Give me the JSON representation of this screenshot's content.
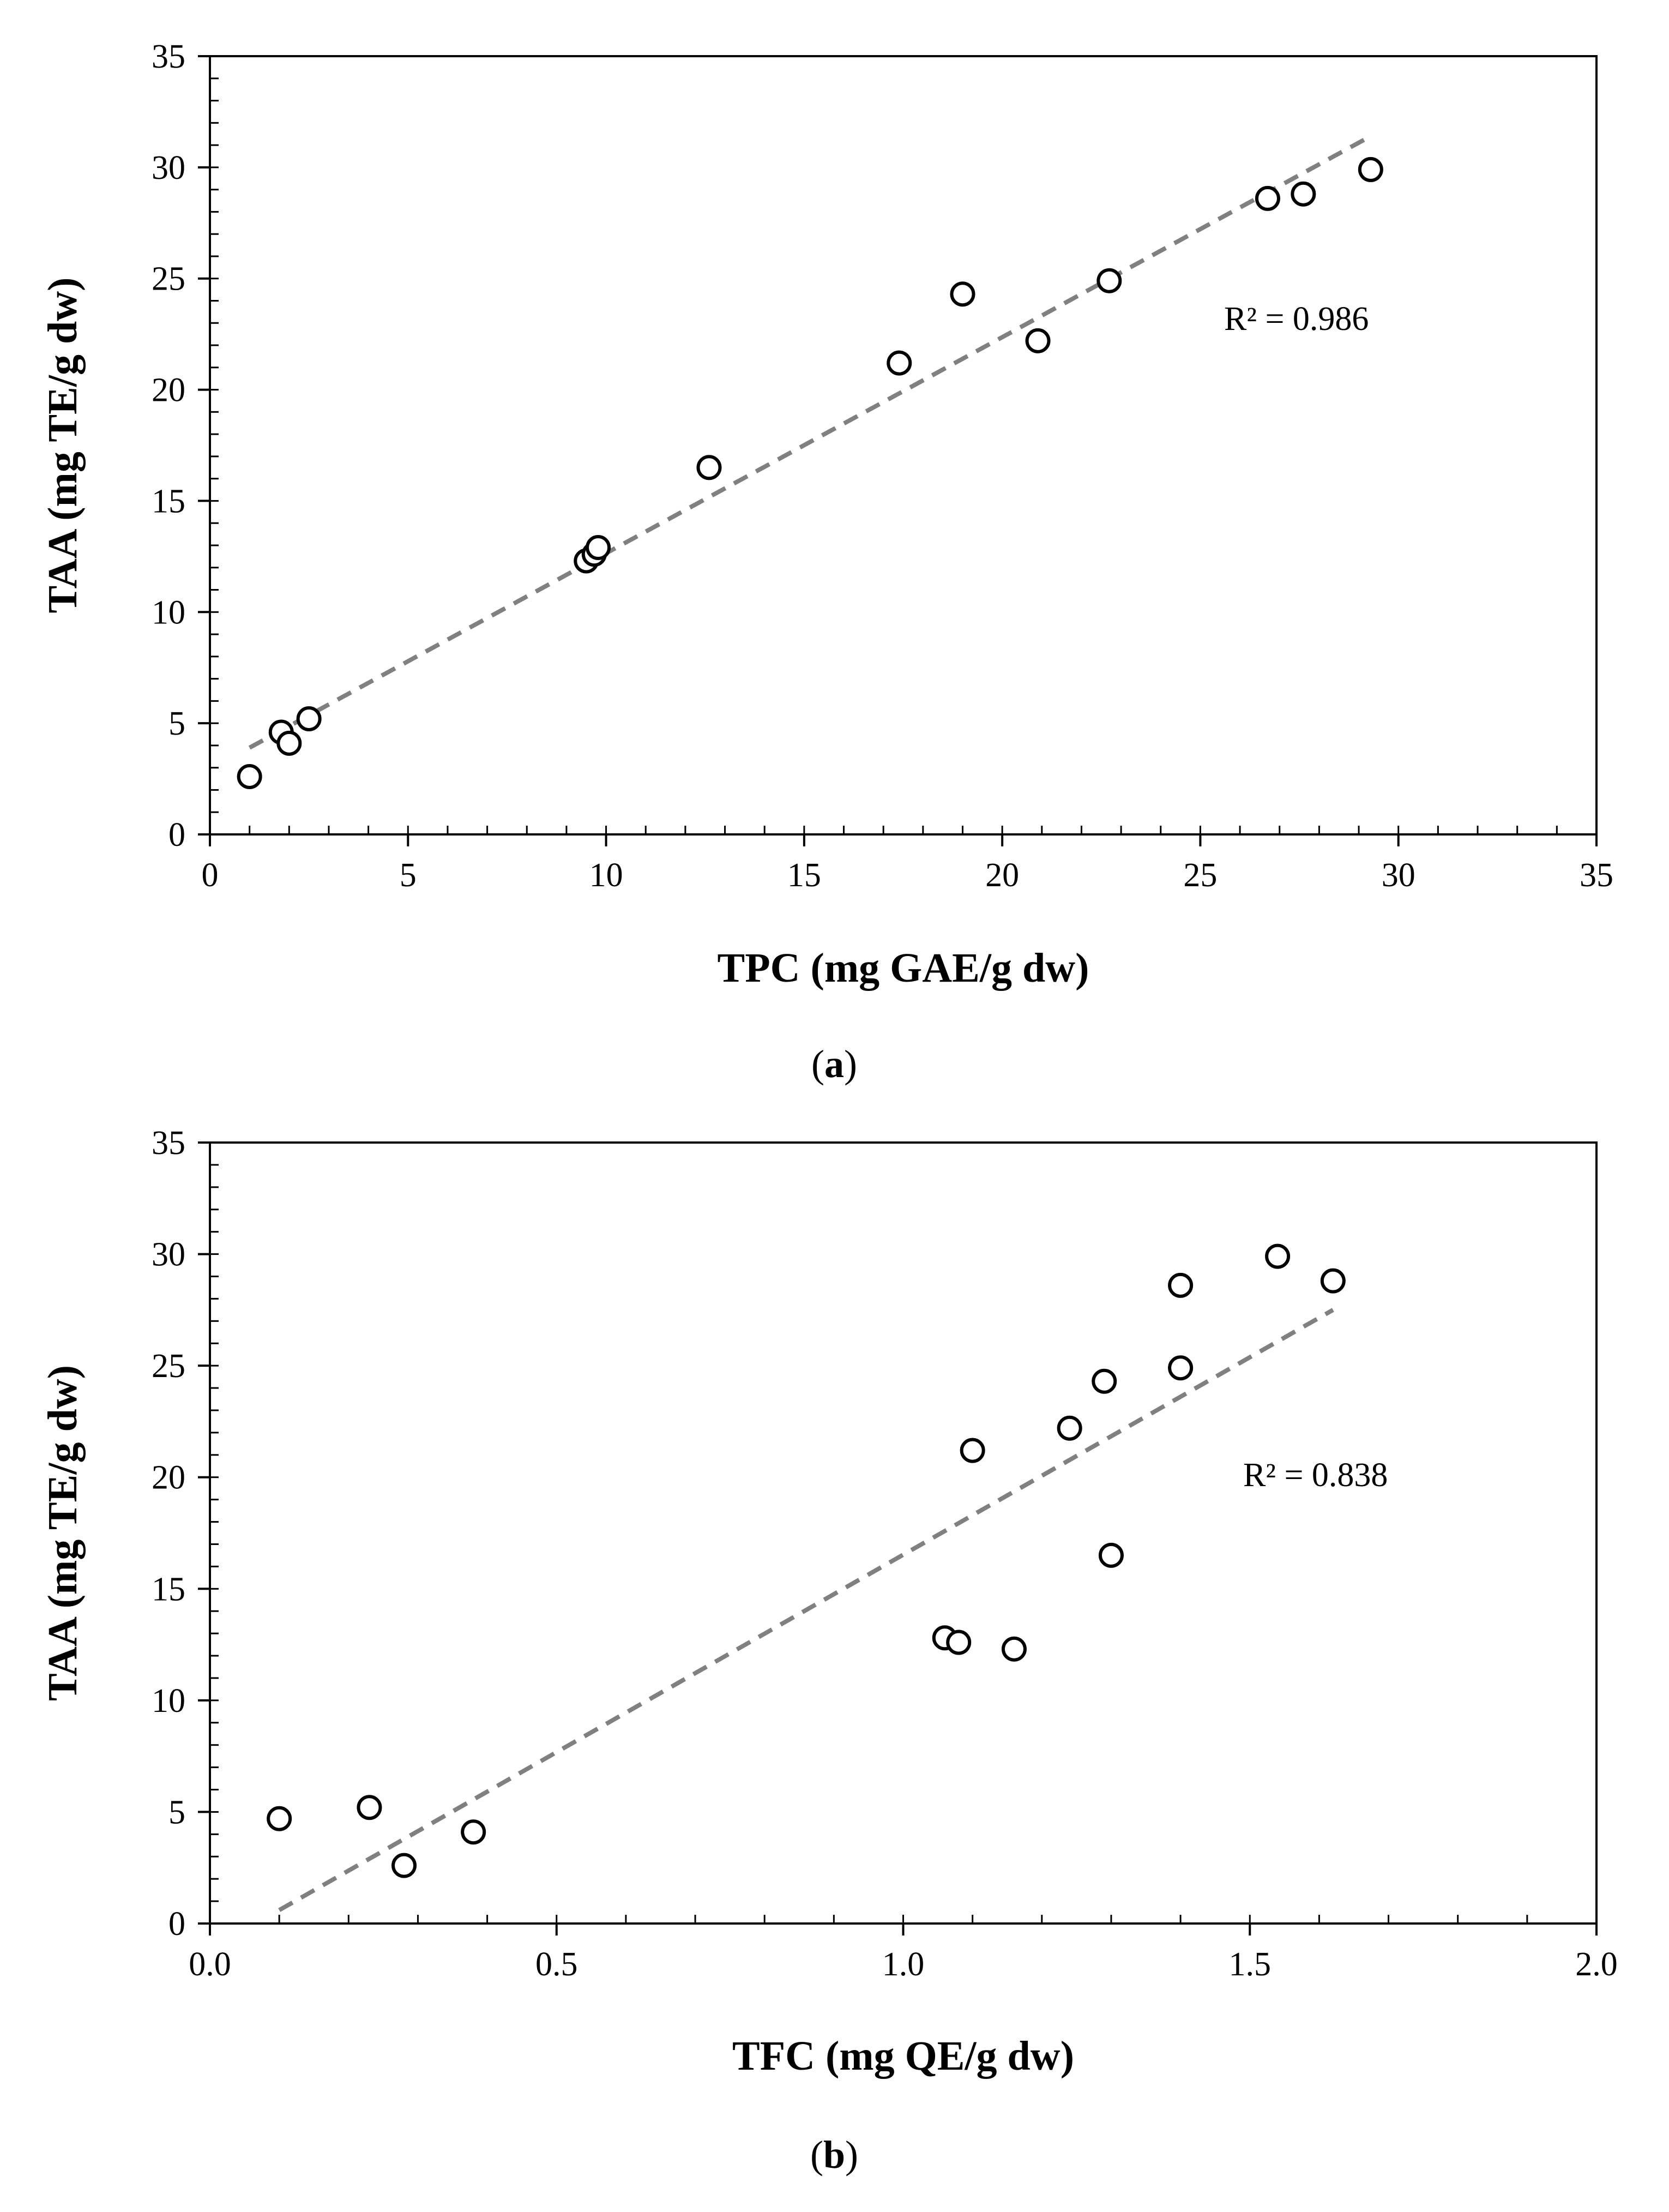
{
  "chart_data": [
    {
      "type": "scatter",
      "caption_letter": "a",
      "xlabel": "TPC (mg GAE/g dw)",
      "ylabel": "TAA (mg TE/g dw)",
      "xlim": [
        0,
        35
      ],
      "ylim": [
        0,
        35
      ],
      "x_ticks": [
        0,
        5,
        10,
        15,
        20,
        25,
        30,
        35
      ],
      "y_ticks": [
        0,
        5,
        10,
        15,
        20,
        25,
        30,
        35
      ],
      "x_tick_labels": [
        "0",
        "5",
        "10",
        "15",
        "20",
        "25",
        "30",
        "35"
      ],
      "y_tick_labels": [
        "0",
        "5",
        "10",
        "15",
        "20",
        "25",
        "30",
        "35"
      ],
      "minor_step": 1,
      "points": [
        {
          "x": 1.0,
          "y": 2.6
        },
        {
          "x": 1.8,
          "y": 4.6
        },
        {
          "x": 2.0,
          "y": 4.1
        },
        {
          "x": 2.5,
          "y": 5.2
        },
        {
          "x": 9.5,
          "y": 12.3
        },
        {
          "x": 9.7,
          "y": 12.6
        },
        {
          "x": 9.8,
          "y": 12.9
        },
        {
          "x": 12.6,
          "y": 16.5
        },
        {
          "x": 17.4,
          "y": 21.2
        },
        {
          "x": 19.0,
          "y": 24.3
        },
        {
          "x": 20.9,
          "y": 22.2
        },
        {
          "x": 22.7,
          "y": 24.9
        },
        {
          "x": 26.7,
          "y": 28.6
        },
        {
          "x": 27.6,
          "y": 28.8
        },
        {
          "x": 29.3,
          "y": 29.9
        }
      ],
      "trendline": {
        "x": [
          1.0,
          29.3
        ],
        "y": [
          3.9,
          31.4
        ]
      },
      "annotation": "R² = 0.986"
    },
    {
      "type": "scatter",
      "caption_letter": "b",
      "xlabel": "TFC (mg QE/g dw)",
      "ylabel": "TAA (mg TE/g dw)",
      "xlim": [
        0,
        2
      ],
      "ylim": [
        0,
        35
      ],
      "x_ticks": [
        0,
        0.5,
        1,
        1.5,
        2
      ],
      "y_ticks": [
        0,
        5,
        10,
        15,
        20,
        25,
        30,
        35
      ],
      "x_tick_labels": [
        "0.0",
        "0.5",
        "1.0",
        "1.5",
        "2.0"
      ],
      "y_tick_labels": [
        "0",
        "5",
        "10",
        "15",
        "20",
        "25",
        "30",
        "35"
      ],
      "minor_step": 0.1,
      "points": [
        {
          "x": 0.1,
          "y": 4.7
        },
        {
          "x": 0.23,
          "y": 5.2
        },
        {
          "x": 0.28,
          "y": 2.6
        },
        {
          "x": 0.38,
          "y": 4.1
        },
        {
          "x": 1.06,
          "y": 12.8
        },
        {
          "x": 1.08,
          "y": 12.6
        },
        {
          "x": 1.1,
          "y": 21.2
        },
        {
          "x": 1.16,
          "y": 12.3
        },
        {
          "x": 1.24,
          "y": 22.2
        },
        {
          "x": 1.29,
          "y": 24.3
        },
        {
          "x": 1.3,
          "y": 16.5
        },
        {
          "x": 1.4,
          "y": 28.6
        },
        {
          "x": 1.4,
          "y": 24.9
        },
        {
          "x": 1.54,
          "y": 29.9
        },
        {
          "x": 1.62,
          "y": 28.8
        }
      ],
      "trendline": {
        "x": [
          0.1,
          1.62
        ],
        "y": [
          0.6,
          27.5
        ]
      },
      "annotation": "R² = 0.838"
    }
  ]
}
